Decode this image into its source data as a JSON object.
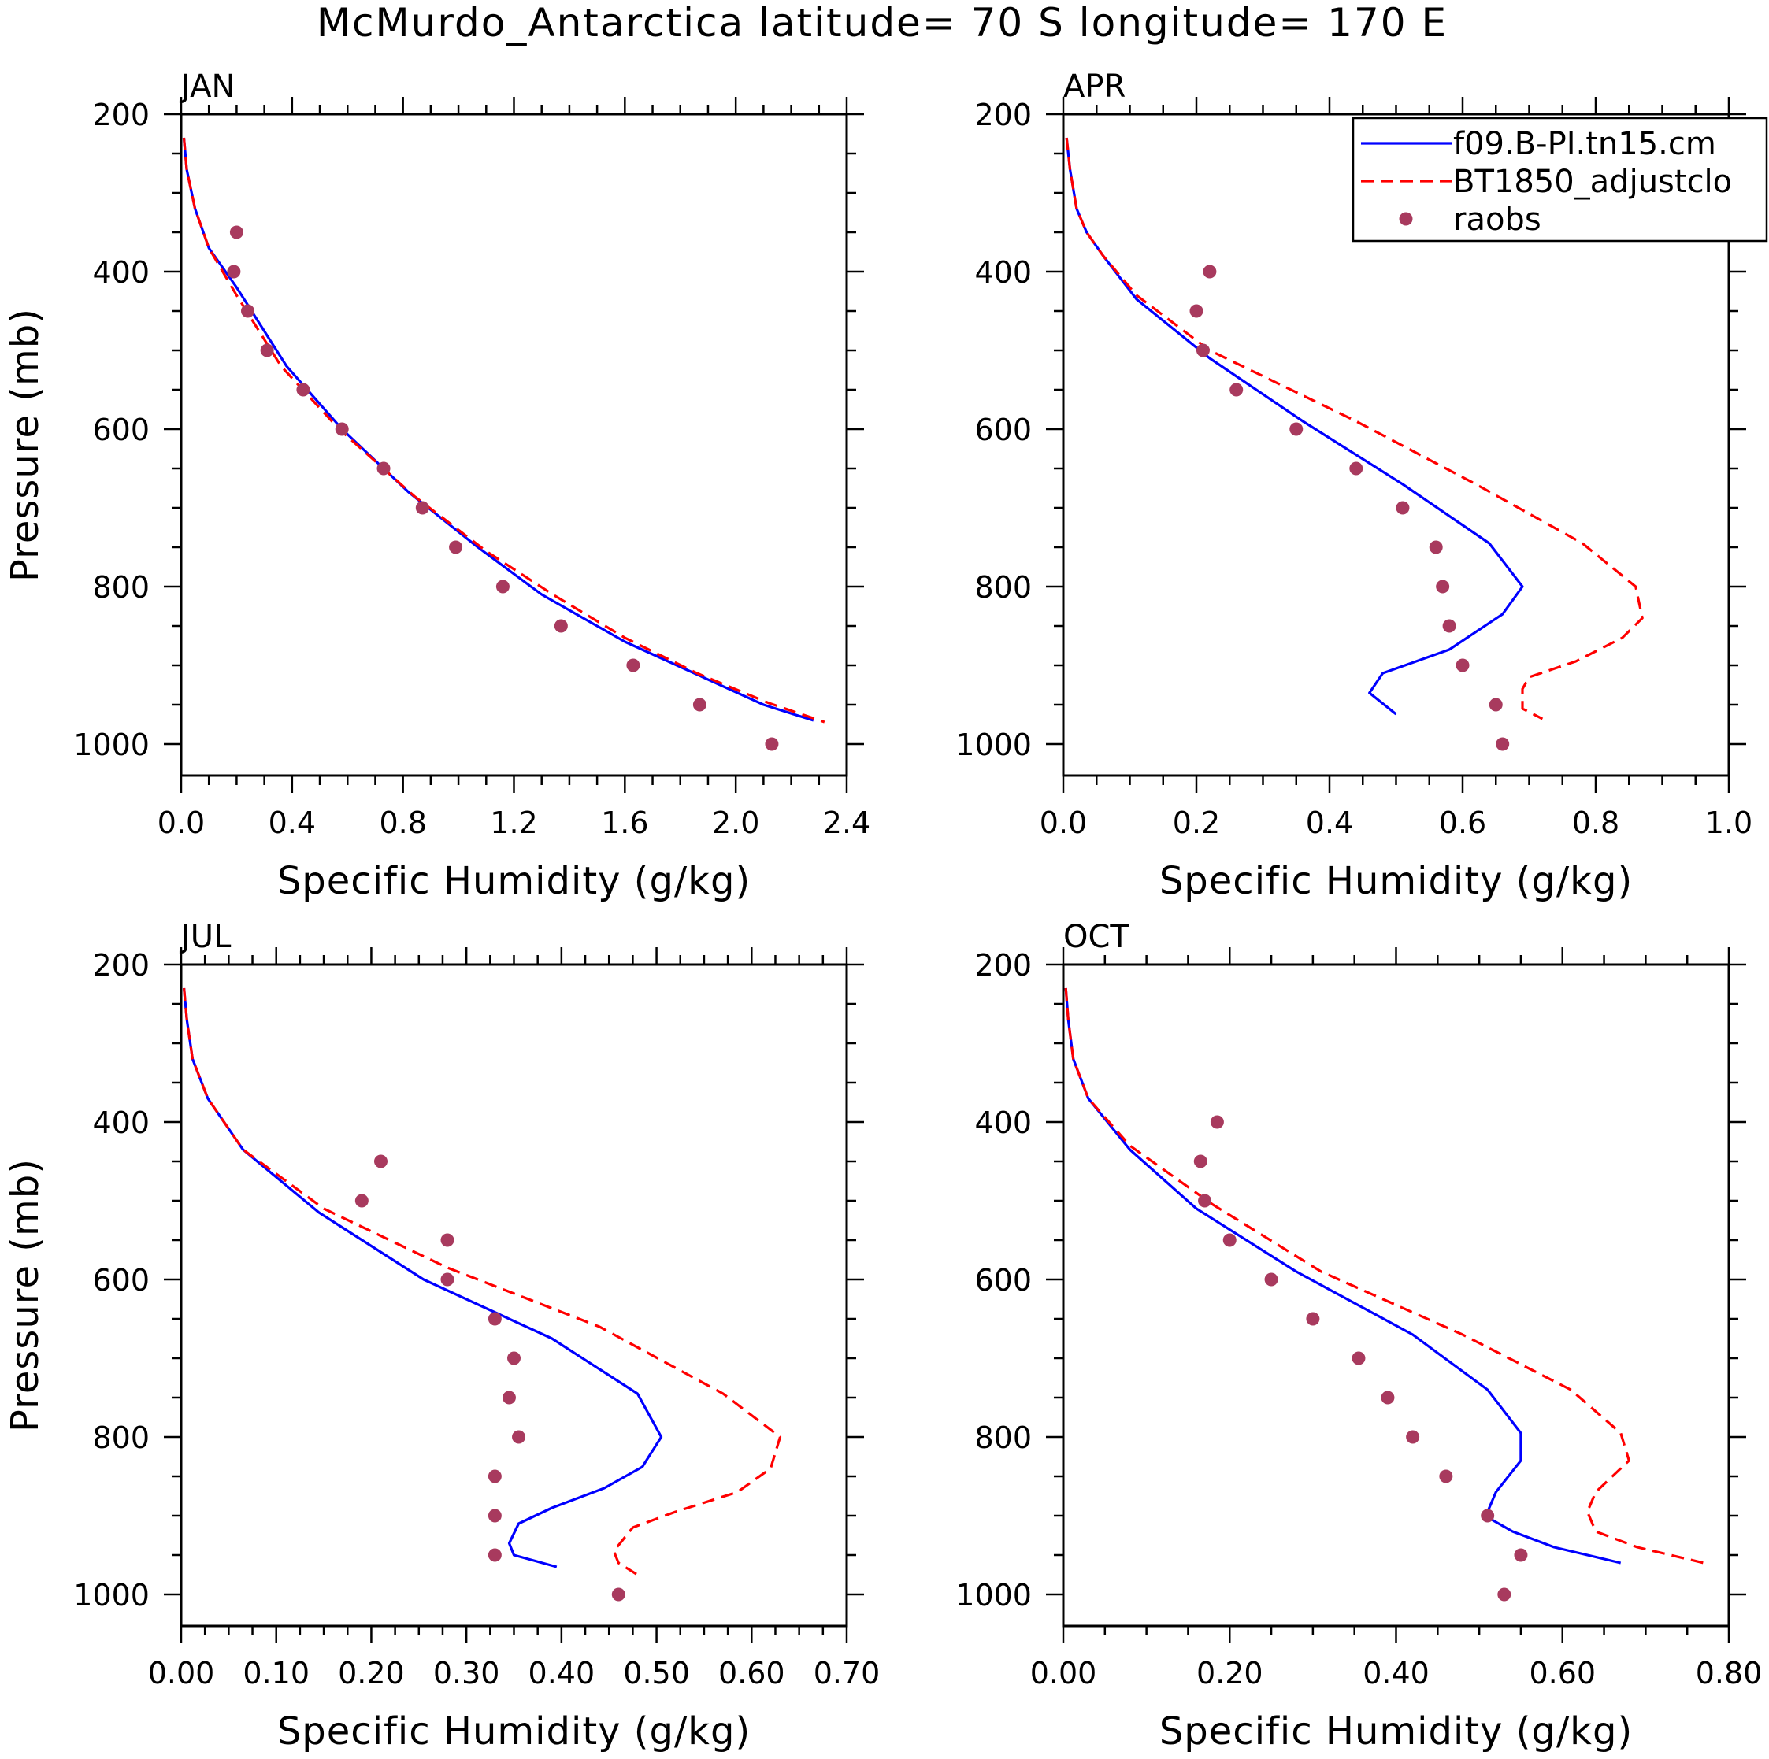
{
  "chart_data": {
    "title": "McMurdo_Antarctica  latitude= 70 S longitude= 170 E",
    "colors": {
      "model1": "#0000ff",
      "model2": "#ff0000",
      "obs": "#a83a5e"
    },
    "legend": {
      "entries": [
        "f09.B-PI.tn15.cm",
        "BT1850_adjustclo",
        "raobs"
      ],
      "placement": "top-right of APR panel"
    },
    "panels": [
      {
        "type": "line",
        "label": "JAN",
        "xlabel": "Specific Humidity (g/kg)",
        "ylabel": "Pressure (mb)",
        "xlim": [
          0,
          2.4
        ],
        "xticks": [
          0.0,
          0.4,
          0.8,
          1.2,
          1.6,
          2.0,
          2.4
        ],
        "xtick_labels": [
          "0.0",
          "0.4",
          "0.8",
          "1.2",
          "1.6",
          "2.0",
          "2.4"
        ],
        "ylim": [
          200,
          1040
        ],
        "yticks": [
          200,
          400,
          600,
          800,
          1000
        ],
        "ytick_labels": [
          "200",
          "400",
          "600",
          "800",
          "1000"
        ],
        "series": [
          {
            "name": "f09.B-PI.tn15.cm",
            "style": "solid",
            "x": [
              0.01,
              0.02,
              0.05,
              0.1,
              0.2,
              0.38,
              0.58,
              0.82,
              1.07,
              1.3,
              1.6,
              1.85,
              2.1,
              2.28
            ],
            "y": [
              230,
              270,
              320,
              370,
              420,
              520,
              600,
              680,
              750,
              810,
              870,
              910,
              950,
              970
            ]
          },
          {
            "name": "BT1850_adjustclo",
            "style": "dashed",
            "x": [
              0.01,
              0.02,
              0.05,
              0.1,
              0.2,
              0.36,
              0.57,
              0.84,
              1.1,
              1.34,
              1.6,
              1.86,
              2.12,
              2.32
            ],
            "y": [
              230,
              270,
              320,
              370,
              430,
              520,
              600,
              685,
              755,
              810,
              865,
              910,
              948,
              972
            ]
          },
          {
            "name": "raobs",
            "style": "markers",
            "x": [
              0.2,
              0.19,
              0.24,
              0.31,
              0.44,
              0.58,
              0.73,
              0.87,
              0.99,
              1.16,
              1.37,
              1.63,
              1.87,
              2.13
            ],
            "y": [
              350,
              400,
              450,
              500,
              550,
              600,
              650,
              700,
              750,
              800,
              850,
              900,
              950,
              1000
            ]
          }
        ]
      },
      {
        "type": "line",
        "label": "APR",
        "xlabel": "Specific Humidity (g/kg)",
        "ylabel": "",
        "xlim": [
          0,
          1.0
        ],
        "xticks": [
          0.0,
          0.2,
          0.4,
          0.6,
          0.8,
          1.0
        ],
        "xtick_labels": [
          "0.0",
          "0.2",
          "0.4",
          "0.6",
          "0.8",
          "1.0"
        ],
        "ylim": [
          200,
          1040
        ],
        "yticks": [
          200,
          400,
          600,
          800,
          1000
        ],
        "ytick_labels": [
          "200",
          "400",
          "600",
          "800",
          "1000"
        ],
        "series": [
          {
            "name": "f09.B-PI.tn15.cm",
            "style": "solid",
            "x": [
              0.005,
              0.01,
              0.02,
              0.035,
              0.06,
              0.11,
              0.22,
              0.36,
              0.51,
              0.64,
              0.69,
              0.66,
              0.58,
              0.48,
              0.46,
              0.5
            ],
            "y": [
              230,
              270,
              320,
              350,
              380,
              435,
              510,
              590,
              670,
              745,
              800,
              835,
              880,
              910,
              935,
              962
            ]
          },
          {
            "name": "BT1850_adjustclo",
            "style": "dashed",
            "x": [
              0.005,
              0.01,
              0.02,
              0.035,
              0.06,
              0.11,
              0.22,
              0.44,
              0.62,
              0.78,
              0.86,
              0.87,
              0.84,
              0.77,
              0.7,
              0.69,
              0.69,
              0.72
            ],
            "y": [
              230,
              270,
              320,
              350,
              380,
              430,
              500,
              590,
              670,
              745,
              800,
              840,
              865,
              895,
              915,
              930,
              955,
              968
            ]
          },
          {
            "name": "raobs",
            "style": "markers",
            "x": [
              0.22,
              0.2,
              0.21,
              0.26,
              0.35,
              0.44,
              0.51,
              0.56,
              0.57,
              0.58,
              0.6,
              0.65,
              0.66
            ],
            "y": [
              400,
              450,
              500,
              550,
              600,
              650,
              700,
              750,
              800,
              850,
              900,
              950,
              1000
            ]
          }
        ]
      },
      {
        "type": "line",
        "label": "JUL",
        "xlabel": "Specific Humidity (g/kg)",
        "ylabel": "Pressure (mb)",
        "xlim": [
          0,
          0.7
        ],
        "xticks": [
          0.0,
          0.1,
          0.2,
          0.3,
          0.4,
          0.5,
          0.6,
          0.7
        ],
        "xtick_labels": [
          "0.00",
          "0.10",
          "0.20",
          "0.30",
          "0.40",
          "0.50",
          "0.60",
          "0.70"
        ],
        "ylim": [
          200,
          1040
        ],
        "yticks": [
          200,
          400,
          600,
          800,
          1000
        ],
        "ytick_labels": [
          "200",
          "400",
          "600",
          "800",
          "1000"
        ],
        "series": [
          {
            "name": "f09.B-PI.tn15.cm",
            "style": "solid",
            "x": [
              0.003,
              0.006,
              0.012,
              0.028,
              0.065,
              0.145,
              0.255,
              0.39,
              0.48,
              0.505,
              0.485,
              0.445,
              0.39,
              0.355,
              0.345,
              0.35,
              0.395
            ],
            "y": [
              230,
              270,
              320,
              370,
              435,
              515,
              600,
              675,
              745,
              800,
              838,
              865,
              890,
              910,
              935,
              950,
              965
            ]
          },
          {
            "name": "BT1850_adjustclo",
            "style": "dashed",
            "x": [
              0.003,
              0.006,
              0.012,
              0.028,
              0.065,
              0.15,
              0.28,
              0.44,
              0.57,
              0.63,
              0.62,
              0.585,
              0.52,
              0.475,
              0.465,
              0.455,
              0.46,
              0.48
            ],
            "y": [
              230,
              270,
              320,
              370,
              435,
              510,
              585,
              660,
              745,
              800,
              840,
              870,
              895,
              915,
              930,
              945,
              960,
              975
            ]
          },
          {
            "name": "raobs",
            "style": "markers",
            "x": [
              0.21,
              0.19,
              0.28,
              0.28,
              0.33,
              0.35,
              0.345,
              0.355,
              0.33,
              0.33,
              0.33,
              0.46
            ],
            "y": [
              450,
              500,
              550,
              600,
              650,
              700,
              750,
              800,
              850,
              900,
              950,
              1000
            ]
          }
        ]
      },
      {
        "type": "line",
        "label": "OCT",
        "xlabel": "Specific Humidity (g/kg)",
        "ylabel": "",
        "xlim": [
          0,
          0.8
        ],
        "xticks": [
          0.0,
          0.2,
          0.4,
          0.6,
          0.8
        ],
        "xtick_labels": [
          "0.00",
          "0.20",
          "0.40",
          "0.60",
          "0.80"
        ],
        "ylim": [
          200,
          1040
        ],
        "yticks": [
          200,
          400,
          600,
          800,
          1000
        ],
        "ytick_labels": [
          "200",
          "400",
          "600",
          "800",
          "1000"
        ],
        "series": [
          {
            "name": "f09.B-PI.tn15.cm",
            "style": "solid",
            "x": [
              0.003,
              0.006,
              0.012,
              0.03,
              0.08,
              0.16,
              0.28,
              0.42,
              0.51,
              0.55,
              0.55,
              0.52,
              0.51,
              0.515,
              0.54,
              0.59,
              0.67
            ],
            "y": [
              230,
              270,
              320,
              370,
              435,
              510,
              590,
              670,
              740,
              795,
              830,
              870,
              895,
              905,
              920,
              940,
              960
            ]
          },
          {
            "name": "BT1850_adjustclo",
            "style": "dashed",
            "x": [
              0.003,
              0.006,
              0.012,
              0.03,
              0.08,
              0.18,
              0.31,
              0.48,
              0.61,
              0.67,
              0.68,
              0.64,
              0.63,
              0.64,
              0.69,
              0.77
            ],
            "y": [
              230,
              270,
              320,
              370,
              430,
              505,
              590,
              670,
              740,
              795,
              830,
              870,
              895,
              920,
              940,
              960
            ]
          },
          {
            "name": "raobs",
            "style": "markers",
            "x": [
              0.185,
              0.165,
              0.17,
              0.2,
              0.25,
              0.3,
              0.355,
              0.39,
              0.42,
              0.46,
              0.51,
              0.55,
              0.53
            ],
            "y": [
              400,
              450,
              500,
              550,
              600,
              650,
              700,
              750,
              800,
              850,
              900,
              950,
              1000
            ]
          }
        ]
      }
    ]
  }
}
